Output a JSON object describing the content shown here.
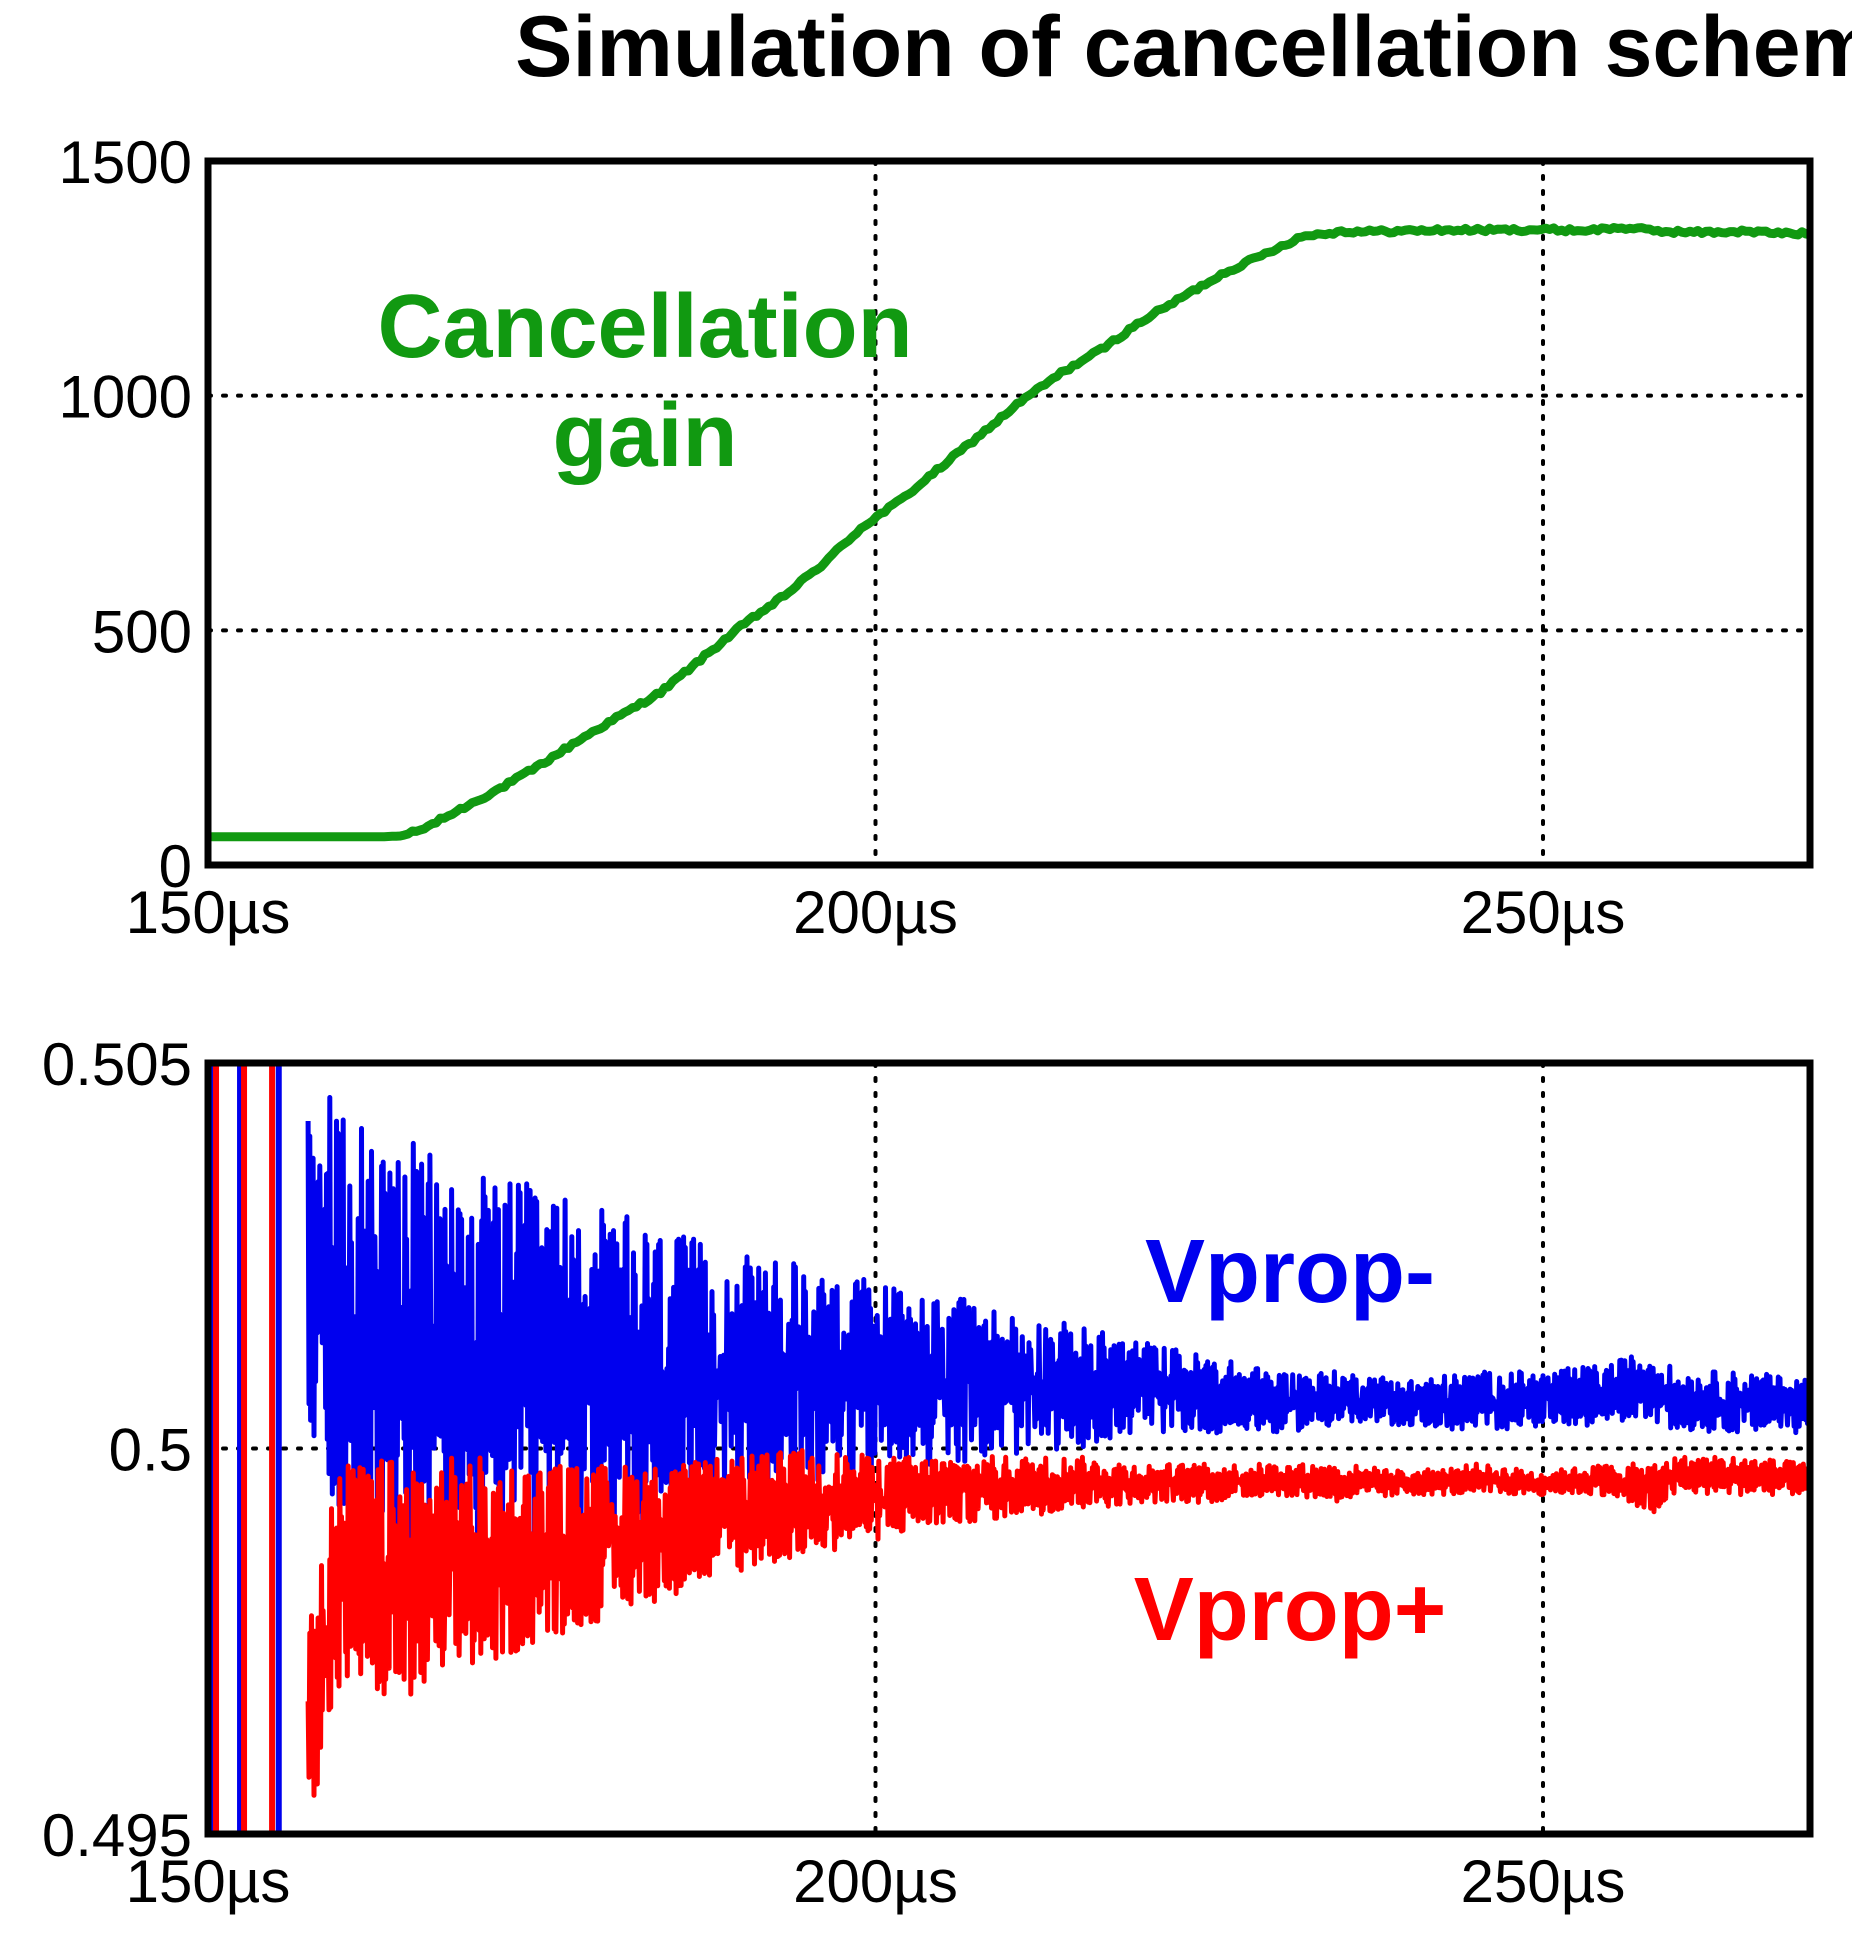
{
  "title": "Simulation of cancellation scheme",
  "colors": {
    "gain": "#119911",
    "vprop_minus": "#0000ee",
    "vprop_plus": "#ff0000"
  },
  "chart_data": [
    {
      "type": "line",
      "xlim": [
        150,
        270
      ],
      "ylim": [
        0,
        1500
      ],
      "grid": true,
      "x_ticks": [
        150,
        200,
        250
      ],
      "x_tick_labels": [
        "150µs",
        "200µs",
        "250µs"
      ],
      "y_ticks": [
        0,
        500,
        1000,
        1500
      ],
      "y_tick_labels": [
        "0",
        "500",
        "1000",
        "1500"
      ],
      "annotation": {
        "line1": "Cancellation",
        "line2": "gain"
      },
      "series": [
        {
          "color": "#119911",
          "x": [
            150,
            152,
            155,
            158,
            161,
            163,
            164.5,
            166,
            168,
            170,
            172,
            175,
            178,
            181,
            184,
            187,
            190,
            193,
            196,
            199,
            202,
            205,
            208,
            211,
            214,
            217,
            220,
            223,
            226,
            229,
            232,
            235,
            238,
            241,
            244,
            247,
            250,
            253,
            256,
            259,
            262,
            265,
            268,
            270
          ],
          "y": [
            60,
            60,
            60,
            60,
            60,
            60,
            62,
            75,
            105,
            135,
            165,
            215,
            270,
            320,
            370,
            440,
            510,
            570,
            640,
            720,
            780,
            850,
            920,
            990,
            1050,
            1100,
            1160,
            1210,
            1260,
            1300,
            1340,
            1350,
            1350,
            1352,
            1353,
            1353,
            1354,
            1352,
            1358,
            1350,
            1348,
            1350,
            1346,
            1345
          ]
        }
      ]
    },
    {
      "type": "line",
      "xlim": [
        150,
        270
      ],
      "ylim": [
        0.495,
        0.505
      ],
      "grid": true,
      "x_ticks": [
        150,
        200,
        250
      ],
      "x_tick_labels": [
        "150µs",
        "200µs",
        "250µs"
      ],
      "y_ticks": [
        0.495,
        0.5,
        0.505
      ],
      "y_tick_labels": [
        "0.495",
        "0.5",
        "0.505"
      ],
      "series": [
        {
          "name": "Vprop-",
          "color": "#0000ee",
          "x": [
            150,
            157,
            157.5,
            160,
            165,
            170,
            175,
            180,
            185,
            190,
            195,
            200,
            205,
            210,
            215,
            220,
            225,
            230,
            235,
            240,
            245,
            250,
            255,
            258,
            260,
            265,
            270
          ],
          "upper": [
            0.505,
            0.505,
            0.505,
            0.5044,
            0.504,
            0.5036,
            0.5034,
            0.5031,
            0.5028,
            0.5025,
            0.5024,
            0.5022,
            0.502,
            0.5018,
            0.5016,
            0.5014,
            0.5012,
            0.501,
            0.501,
            0.5009,
            0.501,
            0.501,
            0.5011,
            0.5013,
            0.501,
            0.501,
            0.5009
          ],
          "lower": [
            0.495,
            0.495,
            0.5004,
            0.499,
            0.4985,
            0.4985,
            0.4986,
            0.4988,
            0.499,
            0.4992,
            0.4995,
            0.4997,
            0.4998,
            0.4999,
            0.5,
            0.5002,
            0.5002,
            0.5002,
            0.5003,
            0.5003,
            0.5002,
            0.5003,
            0.5003,
            0.5004,
            0.5002,
            0.5002,
            0.5002
          ]
        },
        {
          "name": "Vprop+",
          "color": "#ff0000",
          "x": [
            150,
            157,
            157.5,
            160,
            165,
            170,
            175,
            180,
            185,
            190,
            195,
            200,
            205,
            210,
            215,
            220,
            225,
            230,
            235,
            240,
            245,
            250,
            255,
            258,
            260,
            265,
            270
          ],
          "upper": [
            0.505,
            0.505,
            0.4983,
            0.4998,
            0.4999,
            0.4999,
            0.4998,
            0.4998,
            0.4998,
            0.4999,
            0.5,
            0.4999,
            0.4999,
            0.4999,
            0.4999,
            0.4998,
            0.4998,
            0.4998,
            0.4998,
            0.4997,
            0.4998,
            0.4997,
            0.4998,
            0.4998,
            0.4999,
            0.4999,
            0.4998
          ],
          "lower": [
            0.495,
            0.495,
            0.4952,
            0.4968,
            0.4966,
            0.4971,
            0.4975,
            0.4978,
            0.4981,
            0.4984,
            0.4986,
            0.4988,
            0.499,
            0.4991,
            0.4992,
            0.4993,
            0.4993,
            0.4994,
            0.4993,
            0.4994,
            0.4994,
            0.4994,
            0.4994,
            0.4991,
            0.4994,
            0.4994,
            0.4994
          ]
        }
      ]
    }
  ]
}
